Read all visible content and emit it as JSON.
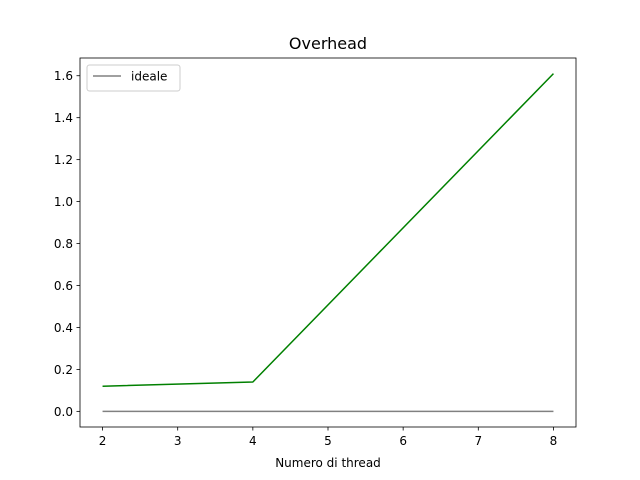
{
  "chart_data": {
    "type": "line",
    "title": "Overhead",
    "xlabel": "Numero di thread",
    "ylabel": "",
    "xlim": [
      1.7,
      8.3
    ],
    "ylim": [
      -0.0745,
      1.6845
    ],
    "x_ticks": [
      2,
      3,
      4,
      5,
      6,
      7,
      8
    ],
    "y_ticks": [
      0.0,
      0.2,
      0.4,
      0.6,
      0.8,
      1.0,
      1.2,
      1.4,
      1.6
    ],
    "y_tick_labels": [
      "0.0",
      "0.2",
      "0.4",
      "0.6",
      "0.8",
      "1.0",
      "1.2",
      "1.4",
      "1.6"
    ],
    "grid": false,
    "legend_position": "top-left",
    "series": [
      {
        "name": "",
        "color": "#008000",
        "x": [
          2,
          4,
          8
        ],
        "y": [
          0.12,
          0.14,
          1.61
        ],
        "in_legend": false
      },
      {
        "name": "ideale",
        "color": "#808080",
        "x": [
          2,
          4,
          8
        ],
        "y": [
          0.0,
          0.0,
          0.0
        ],
        "in_legend": true
      }
    ]
  }
}
